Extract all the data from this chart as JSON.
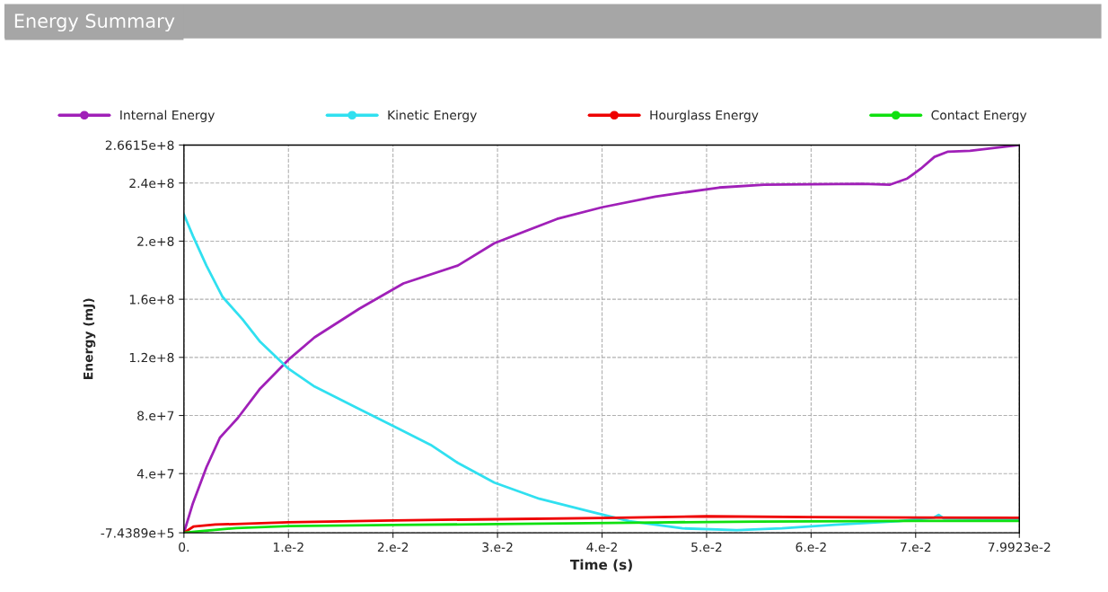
{
  "chart_data": {
    "type": "line",
    "title": "Energy Summary",
    "xlabel": "Time (s)",
    "ylabel": "Energy (mJ)",
    "xlim": [
      0,
      0.079923
    ],
    "xticks": [
      {
        "value": 0,
        "label": "0."
      },
      {
        "value": 0.01,
        "label": "1.e-2"
      },
      {
        "value": 0.02,
        "label": "2.e-2"
      },
      {
        "value": 0.03,
        "label": "3.e-2"
      },
      {
        "value": 0.04,
        "label": "4.e-2"
      },
      {
        "value": 0.05,
        "label": "5.e-2"
      },
      {
        "value": 0.06,
        "label": "6.e-2"
      },
      {
        "value": 0.07,
        "label": "7.e-2"
      },
      {
        "value": 0.079923,
        "label": "7.9923e-2"
      }
    ],
    "ylim": [
      -743890,
      266150000
    ],
    "yticks": [
      {
        "value": -743890,
        "label": "-7.4389e+5"
      },
      {
        "value": 40000000,
        "label": "4.e+7"
      },
      {
        "value": 80000000,
        "label": "8.e+7"
      },
      {
        "value": 120000000,
        "label": "1.2e+8"
      },
      {
        "value": 160000000,
        "label": "1.6e+8"
      },
      {
        "value": 200000000,
        "label": "2.e+8"
      },
      {
        "value": 240000000,
        "label": "2.4e+8"
      },
      {
        "value": 266150000,
        "label": "2.6615e+8"
      }
    ],
    "grid": true,
    "legend": "top",
    "line_style": "solid",
    "series": [
      {
        "name": "Internal Energy",
        "color": "#a020b8",
        "x": [
          0,
          0.00086,
          0.00215,
          0.00344,
          0.00516,
          0.0073,
          0.01,
          0.0125,
          0.0168,
          0.021,
          0.0262,
          0.0297,
          0.0357,
          0.04,
          0.0451,
          0.0512,
          0.0555,
          0.0649,
          0.0675,
          0.0692,
          0.0705,
          0.0718,
          0.0731,
          0.0752,
          0.079923
        ],
        "values": [
          -743890,
          19600000,
          44300000,
          64700000,
          78300000,
          98600000,
          118400000,
          133800000,
          153600000,
          170900000,
          183200000,
          198600000,
          215300000,
          223300000,
          230700000,
          236900000,
          238800000,
          239400000,
          238800000,
          243100000,
          249900000,
          258000000,
          261600000,
          262200000,
          266150000
        ]
      },
      {
        "name": "Kinetic Energy",
        "color": "#30e0f0",
        "x": [
          0,
          0.00086,
          0.00215,
          0.0037,
          0.0056,
          0.0073,
          0.01,
          0.0125,
          0.0168,
          0.0202,
          0.0236,
          0.0262,
          0.0297,
          0.034,
          0.0391,
          0.0426,
          0.0477,
          0.0529,
          0.0572,
          0.0623,
          0.0684,
          0.0718,
          0.0722,
          0.0727,
          0.079923
        ],
        "values": [
          218400000,
          203600000,
          183200000,
          161600000,
          146200000,
          130700000,
          112200000,
          99900000,
          84400000,
          72100000,
          59800000,
          47400000,
          33800000,
          22700000,
          13500000,
          7300000,
          2300000,
          1100000,
          2300000,
          4800000,
          7300000,
          9800000,
          11600000,
          9100000,
          8500000
        ]
      },
      {
        "name": "Hourglass Energy",
        "color": "#ee0000",
        "x": [
          0,
          0.0009,
          0.003,
          0.01,
          0.02,
          0.03,
          0.04,
          0.05,
          0.06,
          0.07,
          0.079923
        ],
        "values": [
          -743890,
          3500000,
          4900000,
          6500000,
          7800000,
          8600000,
          9400000,
          10600000,
          10000000,
          9800000,
          9600000
        ]
      },
      {
        "name": "Contact Energy",
        "color": "#10e010",
        "x": [
          0,
          0.001,
          0.005,
          0.01,
          0.02,
          0.03,
          0.045,
          0.055,
          0.07,
          0.079923
        ],
        "values": [
          -743890,
          0,
          2500000,
          3900000,
          4600000,
          5300000,
          6400000,
          7000000,
          7400000,
          7400000
        ]
      }
    ]
  }
}
